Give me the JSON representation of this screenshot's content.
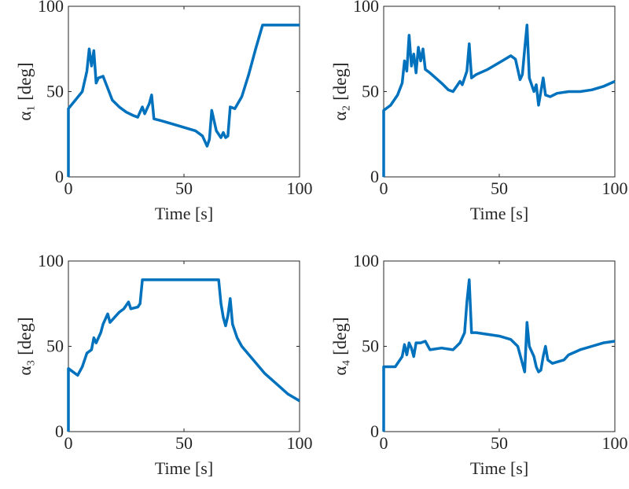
{
  "chart_data": [
    {
      "type": "line",
      "xlabel": "Time [s]",
      "ylabel": "α₁ [deg]",
      "xlim": [
        0,
        100
      ],
      "ylim": [
        0,
        100
      ],
      "xticks": [
        0,
        50,
        100
      ],
      "yticks": [
        0,
        50,
        100
      ],
      "color": "#0072bd",
      "x": [
        0,
        0,
        3,
        6,
        8,
        9,
        10,
        11,
        12,
        13,
        15,
        17,
        19,
        22,
        25,
        28,
        30,
        32,
        33,
        35,
        36,
        37,
        40,
        45,
        50,
        55,
        58,
        60,
        61,
        62,
        64,
        66,
        67,
        68,
        69,
        70,
        72,
        75,
        78,
        81,
        84,
        100
      ],
      "y": [
        0,
        40,
        45,
        50,
        62,
        75,
        65,
        74,
        55,
        58,
        59,
        52,
        45,
        41,
        38,
        36,
        35,
        41,
        37,
        43,
        48,
        34,
        33,
        31,
        29,
        27,
        24,
        18,
        22,
        39,
        27,
        23,
        26,
        23,
        24,
        41,
        40,
        47,
        60,
        75,
        89,
        89
      ]
    },
    {
      "type": "line",
      "xlabel": "Time [s]",
      "ylabel": "α₂ [deg]",
      "xlim": [
        0,
        100
      ],
      "ylim": [
        0,
        100
      ],
      "xticks": [
        0,
        50,
        100
      ],
      "yticks": [
        0,
        50,
        100
      ],
      "color": "#0072bd",
      "x": [
        0,
        0,
        3,
        6,
        8,
        9,
        10,
        11,
        12,
        13,
        14,
        15,
        16,
        17,
        18,
        20,
        25,
        28,
        30,
        33,
        34,
        36,
        37,
        38,
        40,
        45,
        50,
        55,
        57,
        59,
        60,
        61,
        62,
        63,
        65,
        66,
        67,
        68,
        69,
        70,
        72,
        75,
        80,
        85,
        90,
        95,
        100
      ],
      "y": [
        0,
        39,
        42,
        48,
        55,
        68,
        62,
        83,
        65,
        72,
        61,
        76,
        68,
        75,
        63,
        61,
        55,
        51,
        50,
        56,
        54,
        62,
        78,
        58,
        60,
        63,
        67,
        71,
        69,
        57,
        60,
        75,
        89,
        58,
        50,
        54,
        42,
        50,
        58,
        48,
        47,
        49,
        50,
        50,
        51,
        53,
        56
      ]
    },
    {
      "type": "line",
      "xlabel": "Time [s]",
      "ylabel": "α₃ [deg]",
      "xlim": [
        0,
        100
      ],
      "ylim": [
        0,
        100
      ],
      "xticks": [
        0,
        50,
        100
      ],
      "yticks": [
        0,
        50,
        100
      ],
      "color": "#0072bd",
      "x": [
        0,
        0,
        2,
        4,
        6,
        8,
        10,
        11,
        12,
        14,
        15,
        17,
        18,
        20,
        22,
        24,
        26,
        27,
        30,
        31,
        32,
        65,
        66,
        67,
        68,
        69,
        70,
        71,
        73,
        75,
        80,
        85,
        90,
        95,
        100
      ],
      "y": [
        0,
        37,
        35,
        33,
        38,
        46,
        48,
        55,
        52,
        58,
        63,
        69,
        64,
        67,
        70,
        72,
        76,
        72,
        73,
        75,
        89,
        89,
        75,
        67,
        62,
        68,
        78,
        63,
        55,
        50,
        42,
        34,
        28,
        22,
        18
      ]
    },
    {
      "type": "line",
      "xlabel": "Time [s]",
      "ylabel": "α₄ [deg]",
      "xlim": [
        0,
        100
      ],
      "ylim": [
        0,
        100
      ],
      "xticks": [
        0,
        50,
        100
      ],
      "yticks": [
        0,
        50,
        100
      ],
      "color": "#0072bd",
      "x": [
        0,
        0,
        5,
        8,
        9,
        10,
        11,
        12,
        13,
        14,
        16,
        18,
        20,
        25,
        30,
        33,
        35,
        36,
        37,
        38,
        40,
        50,
        55,
        58,
        60,
        61,
        62,
        63,
        65,
        66,
        67,
        68,
        69,
        70,
        71,
        73,
        78,
        80,
        85,
        90,
        95,
        100
      ],
      "y": [
        0,
        38,
        38,
        44,
        51,
        45,
        52,
        49,
        44,
        52,
        52,
        53,
        48,
        49,
        48,
        52,
        58,
        76,
        89,
        58,
        58,
        56,
        54,
        50,
        40,
        35,
        64,
        50,
        44,
        38,
        35,
        36,
        44,
        50,
        42,
        40,
        42,
        45,
        48,
        50,
        52,
        53
      ]
    }
  ]
}
